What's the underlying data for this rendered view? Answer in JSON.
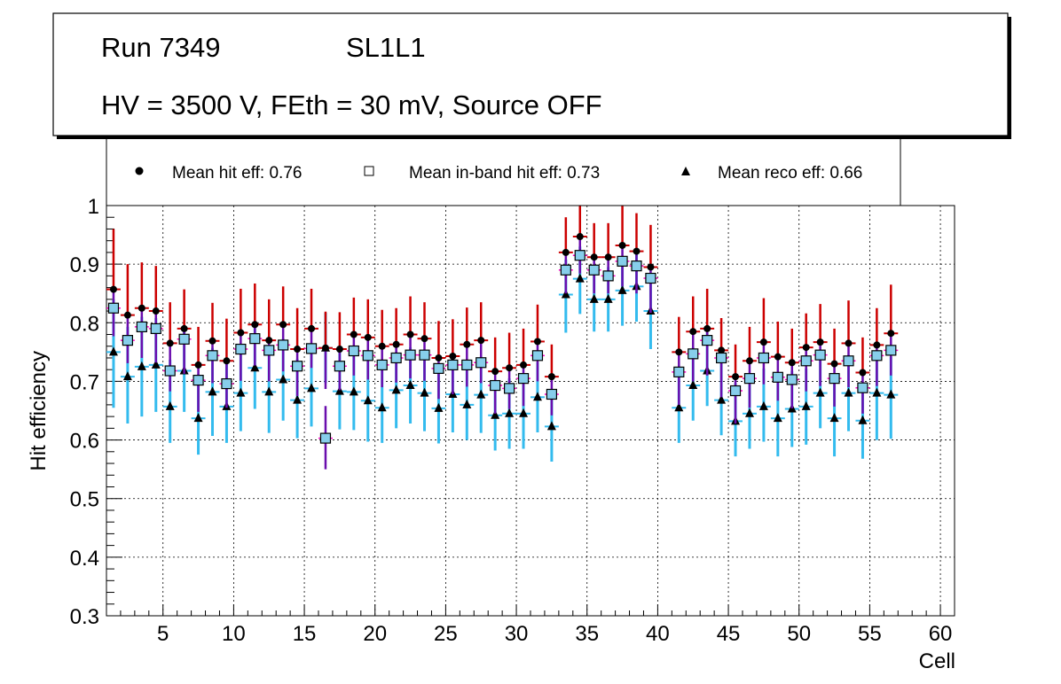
{
  "title_box": {
    "run": "Run 7349",
    "layer": "SL1L1",
    "conditions": "HV = 3500 V, FEth = 30 mV, Source OFF"
  },
  "legend": {
    "hit": "Mean hit  eff: 0.76",
    "inband": "Mean in-band hit eff: 0.73",
    "reco": "Mean reco eff: 0.66"
  },
  "colors": {
    "hit_marker": "#000000",
    "hit_err_up": "#cc0000",
    "hit_err_down": "#6a0dad",
    "inband_fill": "#87ceeb",
    "inband_edge": "#000000",
    "inband_xerr": "#ff00cc",
    "reco_marker": "#000000",
    "reco_err": "#33bbee"
  },
  "chart_data": {
    "type": "scatter",
    "title": "",
    "xlabel": "Cell",
    "ylabel": "Hit efficiency",
    "xlim": [
      1,
      61
    ],
    "ylim": [
      0.3,
      1.0
    ],
    "grid": true,
    "xticks": [
      5,
      10,
      15,
      20,
      25,
      30,
      35,
      40,
      45,
      50,
      55,
      60
    ],
    "yticks": [
      0.3,
      0.4,
      0.5,
      0.6,
      0.7,
      0.8,
      0.9,
      1.0
    ],
    "xtick_labels": [
      "5",
      "10",
      "15",
      "20",
      "25",
      "30",
      "35",
      "40",
      "45",
      "50",
      "55",
      "60"
    ],
    "ytick_labels": [
      "0.3",
      "0.4",
      "0.5",
      "0.6",
      "0.7",
      "0.8",
      "0.9",
      "1"
    ],
    "x": [
      1.5,
      2.5,
      3.5,
      4.5,
      5.5,
      6.5,
      7.5,
      8.5,
      9.5,
      10.5,
      11.5,
      12.5,
      13.5,
      14.5,
      15.5,
      16.5,
      17.5,
      18.5,
      19.5,
      20.5,
      21.5,
      22.5,
      23.5,
      24.5,
      25.5,
      26.5,
      27.5,
      28.5,
      29.5,
      30.5,
      31.5,
      32.5,
      33.5,
      34.5,
      35.5,
      36.5,
      37.5,
      38.5,
      39.5,
      41.5,
      42.5,
      43.5,
      44.5,
      45.5,
      46.5,
      47.5,
      48.5,
      49.5,
      50.5,
      51.5,
      52.5,
      53.5,
      54.5,
      55.5,
      56.5
    ],
    "series": [
      {
        "name": "Mean hit  eff: 0.76",
        "marker": "circle",
        "values": [
          0.857,
          0.813,
          0.825,
          0.82,
          0.765,
          0.79,
          0.728,
          0.769,
          0.735,
          0.783,
          0.797,
          0.77,
          0.797,
          0.755,
          0.79,
          0.757,
          0.755,
          0.78,
          0.775,
          0.76,
          0.763,
          0.78,
          0.773,
          0.74,
          0.743,
          0.763,
          0.77,
          0.717,
          0.723,
          0.728,
          0.768,
          0.708,
          0.92,
          0.947,
          0.912,
          0.912,
          0.932,
          0.922,
          0.895,
          0.75,
          0.785,
          0.79,
          0.753,
          0.708,
          0.735,
          0.767,
          0.742,
          0.732,
          0.758,
          0.767,
          0.73,
          0.765,
          0.715,
          0.762,
          0.782
        ],
        "err_up": [
          0.103,
          0.087,
          0.078,
          0.077,
          0.07,
          0.067,
          0.065,
          0.065,
          0.072,
          0.075,
          0.07,
          0.07,
          0.065,
          0.07,
          0.068,
          0.062,
          0.063,
          0.063,
          0.065,
          0.062,
          0.062,
          0.065,
          0.062,
          0.063,
          0.063,
          0.063,
          0.065,
          0.058,
          0.06,
          0.062,
          0.063,
          0.055,
          0.06,
          0.053,
          0.058,
          0.058,
          0.068,
          0.065,
          0.072,
          0.06,
          0.06,
          0.068,
          0.055,
          0.055,
          0.058,
          0.075,
          0.06,
          0.058,
          0.058,
          0.065,
          0.06,
          0.073,
          0.06,
          0.063,
          0.083
        ],
        "err_down": [
          0.08,
          0.082,
          0.085,
          0.088,
          0.082,
          0.077,
          0.08,
          0.072,
          0.08,
          0.082,
          0.07,
          0.07,
          0.08,
          0.08,
          0.067,
          0.07,
          0.07,
          0.07,
          0.072,
          0.07,
          0.065,
          0.075,
          0.072,
          0.07,
          0.065,
          0.072,
          0.073,
          0.072,
          0.07,
          0.07,
          0.068,
          0.066,
          0.07,
          0.063,
          0.062,
          0.062,
          0.07,
          0.072,
          0.078,
          0.09,
          0.085,
          0.08,
          0.08,
          0.08,
          0.08,
          0.072,
          0.075,
          0.078,
          0.075,
          0.075,
          0.073,
          0.075,
          0.07,
          0.07,
          0.072
        ]
      },
      {
        "name": "Mean in-band hit eff: 0.73",
        "marker": "open-square",
        "values": [
          0.825,
          0.77,
          0.793,
          0.79,
          0.718,
          0.772,
          0.702,
          0.744,
          0.696,
          0.755,
          0.773,
          0.753,
          0.762,
          0.726,
          0.756,
          0.603,
          0.726,
          0.752,
          0.744,
          0.728,
          0.74,
          0.745,
          0.745,
          0.722,
          0.728,
          0.728,
          0.732,
          0.693,
          0.688,
          0.705,
          0.744,
          0.678,
          0.89,
          0.915,
          0.89,
          0.88,
          0.905,
          0.897,
          0.876,
          0.716,
          0.747,
          0.77,
          0.74,
          0.684,
          0.705,
          0.74,
          0.707,
          0.703,
          0.735,
          0.745,
          0.705,
          0.735,
          0.689,
          0.744,
          0.753
        ],
        "err_up": [
          0,
          0,
          0,
          0,
          0,
          0,
          0,
          0,
          0,
          0,
          0,
          0,
          0,
          0,
          0,
          0.055,
          0,
          0,
          0,
          0,
          0,
          0,
          0,
          0,
          0,
          0,
          0,
          0,
          0,
          0,
          0,
          0,
          0,
          0,
          0,
          0,
          0,
          0,
          0,
          0,
          0,
          0,
          0,
          0,
          0,
          0,
          0,
          0,
          0,
          0,
          0,
          0,
          0,
          0,
          0
        ],
        "err_down": [
          0,
          0,
          0,
          0,
          0,
          0,
          0,
          0,
          0,
          0,
          0,
          0,
          0,
          0,
          0,
          0.053,
          0,
          0,
          0,
          0,
          0,
          0,
          0,
          0,
          0,
          0,
          0,
          0,
          0,
          0,
          0,
          0,
          0,
          0,
          0,
          0,
          0,
          0,
          0,
          0,
          0,
          0,
          0,
          0,
          0,
          0,
          0,
          0,
          0,
          0,
          0,
          0,
          0,
          0,
          0
        ]
      },
      {
        "name": "Mean reco eff: 0.66",
        "marker": "triangle",
        "values": [
          0.75,
          0.708,
          0.725,
          0.728,
          0.657,
          0.718,
          0.637,
          0.682,
          0.657,
          0.68,
          0.723,
          0.682,
          0.703,
          0.668,
          0.688,
          0.757,
          0.683,
          0.682,
          0.667,
          0.655,
          0.685,
          0.693,
          0.68,
          0.654,
          0.678,
          0.66,
          0.677,
          0.642,
          0.645,
          0.645,
          0.673,
          0.623,
          0.848,
          0.875,
          0.84,
          0.84,
          0.855,
          0.862,
          0.82,
          0.655,
          0.693,
          0.718,
          0.668,
          0.632,
          0.645,
          0.657,
          0.637,
          0.653,
          0.657,
          0.68,
          0.637,
          0.68,
          0.633,
          0.68,
          0.677
        ],
        "err_up": [
          0.09,
          0.085,
          0.085,
          0.08,
          0.08,
          0.075,
          0.075,
          0.075,
          0.075,
          0.07,
          0.07,
          0.07,
          0.07,
          0.07,
          0.07,
          0.06,
          0.07,
          0.07,
          0.07,
          0.065,
          0.065,
          0.065,
          0.065,
          0.065,
          0.065,
          0.065,
          0.065,
          0.06,
          0.06,
          0.06,
          0.06,
          0.06,
          0.06,
          0.055,
          0.055,
          0.055,
          0.055,
          0.055,
          0.055,
          0.065,
          0.065,
          0.065,
          0.065,
          0.065,
          0.065,
          0.065,
          0.065,
          0.065,
          0.065,
          0.065,
          0.065,
          0.065,
          0.065,
          0.065,
          0.065
        ],
        "err_down": [
          0.095,
          0.08,
          0.085,
          0.08,
          0.062,
          0.07,
          0.062,
          0.075,
          0.062,
          0.065,
          0.07,
          0.07,
          0.07,
          0.065,
          0.065,
          0.06,
          0.065,
          0.065,
          0.07,
          0.06,
          0.065,
          0.065,
          0.065,
          0.06,
          0.065,
          0.06,
          0.065,
          0.06,
          0.06,
          0.06,
          0.06,
          0.06,
          0.065,
          0.06,
          0.055,
          0.055,
          0.06,
          0.06,
          0.065,
          0.06,
          0.06,
          0.06,
          0.06,
          0.06,
          0.06,
          0.06,
          0.065,
          0.065,
          0.065,
          0.06,
          0.065,
          0.065,
          0.065,
          0.08,
          0.075
        ]
      }
    ]
  }
}
